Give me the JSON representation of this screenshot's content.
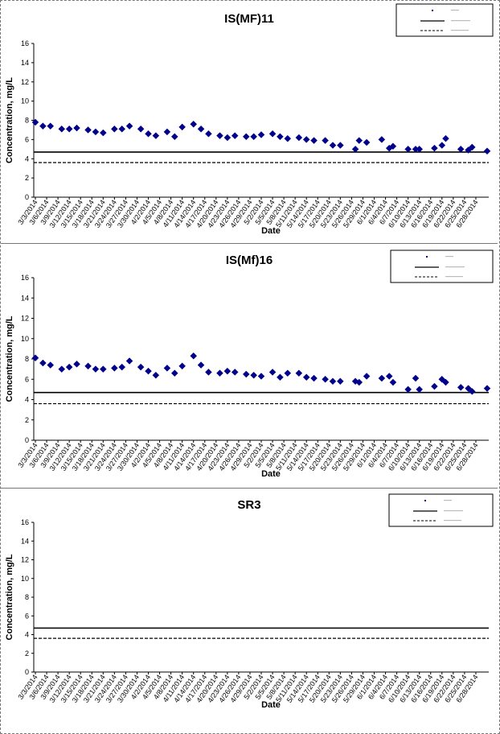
{
  "chart_data": [
    {
      "type": "scatter",
      "title": "IS(MF)11",
      "xlabel": "Date",
      "ylabel": "Concentration, mg/L",
      "ylim": [
        0,
        16
      ],
      "yticks": [
        0,
        2,
        4,
        6,
        8,
        10,
        12,
        14,
        16
      ],
      "x_tick_labels": [
        "3/3/2014",
        "3/6/2014",
        "3/9/2014",
        "3/12/2014",
        "3/15/2014",
        "3/18/2014",
        "3/21/2014",
        "3/24/2014",
        "3/27/2014",
        "3/30/2014",
        "4/2/2014",
        "4/5/2014",
        "4/8/2014",
        "4/11/2014",
        "4/14/2014",
        "4/17/2014",
        "4/20/2014",
        "4/23/2014",
        "4/26/2014",
        "4/29/2014",
        "5/2/2014",
        "5/5/2014",
        "5/8/2014",
        "5/11/2014",
        "5/14/2014",
        "5/17/2014",
        "5/20/2014",
        "5/23/2014",
        "5/26/2014",
        "5/29/2014",
        "6/1/2014",
        "6/4/2014",
        "6/7/2014",
        "6/10/2014",
        "6/13/2014",
        "6/16/2014",
        "6/19/2014",
        "6/22/2014",
        "6/25/2014",
        "6/28/2014"
      ],
      "grid": false,
      "legend_position": "top-right",
      "hlines": [
        {
          "y": 4.7,
          "style": "solid"
        },
        {
          "y": 3.6,
          "style": "dashed"
        }
      ],
      "series": [
        {
          "marker": "diamond",
          "color": "#00008B",
          "points": [
            {
              "x": "3/3/2014",
              "y": 7.8
            },
            {
              "x": "3/5/2014",
              "y": 7.4
            },
            {
              "x": "3/7/2014",
              "y": 7.4
            },
            {
              "x": "3/10/2014",
              "y": 7.1
            },
            {
              "x": "3/12/2014",
              "y": 7.1
            },
            {
              "x": "3/14/2014",
              "y": 7.2
            },
            {
              "x": "3/17/2014",
              "y": 7.0
            },
            {
              "x": "3/19/2014",
              "y": 6.8
            },
            {
              "x": "3/21/2014",
              "y": 6.7
            },
            {
              "x": "3/24/2014",
              "y": 7.1
            },
            {
              "x": "3/26/2014",
              "y": 7.1
            },
            {
              "x": "3/28/2014",
              "y": 7.4
            },
            {
              "x": "3/31/2014",
              "y": 7.1
            },
            {
              "x": "4/2/2014",
              "y": 6.6
            },
            {
              "x": "4/4/2014",
              "y": 6.4
            },
            {
              "x": "4/7/2014",
              "y": 6.8
            },
            {
              "x": "4/9/2014",
              "y": 6.3
            },
            {
              "x": "4/11/2014",
              "y": 7.3
            },
            {
              "x": "4/14/2014",
              "y": 7.6
            },
            {
              "x": "4/16/2014",
              "y": 7.1
            },
            {
              "x": "4/18/2014",
              "y": 6.6
            },
            {
              "x": "4/21/2014",
              "y": 6.4
            },
            {
              "x": "4/23/2014",
              "y": 6.2
            },
            {
              "x": "4/25/2014",
              "y": 6.4
            },
            {
              "x": "4/28/2014",
              "y": 6.3
            },
            {
              "x": "4/30/2014",
              "y": 6.3
            },
            {
              "x": "5/2/2014",
              "y": 6.5
            },
            {
              "x": "5/5/2014",
              "y": 6.6
            },
            {
              "x": "5/7/2014",
              "y": 6.3
            },
            {
              "x": "5/9/2014",
              "y": 6.1
            },
            {
              "x": "5/12/2014",
              "y": 6.2
            },
            {
              "x": "5/14/2014",
              "y": 6.0
            },
            {
              "x": "5/16/2014",
              "y": 5.9
            },
            {
              "x": "5/19/2014",
              "y": 5.9
            },
            {
              "x": "5/21/2014",
              "y": 5.4
            },
            {
              "x": "5/23/2014",
              "y": 5.4
            },
            {
              "x": "5/27/2014",
              "y": 5.0
            },
            {
              "x": "5/28/2014",
              "y": 5.9
            },
            {
              "x": "5/30/2014",
              "y": 5.7
            },
            {
              "x": "6/3/2014",
              "y": 6.0
            },
            {
              "x": "6/5/2014",
              "y": 5.1
            },
            {
              "x": "6/6/2014",
              "y": 5.3
            },
            {
              "x": "6/10/2014",
              "y": 5.0
            },
            {
              "x": "6/12/2014",
              "y": 5.0
            },
            {
              "x": "6/13/2014",
              "y": 5.0
            },
            {
              "x": "6/17/2014",
              "y": 5.1
            },
            {
              "x": "6/19/2014",
              "y": 5.4
            },
            {
              "x": "6/20/2014",
              "y": 6.1
            },
            {
              "x": "6/24/2014",
              "y": 5.0
            },
            {
              "x": "6/26/2014",
              "y": 4.9
            },
            {
              "x": "6/27/2014",
              "y": 5.2
            },
            {
              "x": "7/1/2014",
              "y": 4.8
            }
          ]
        }
      ]
    },
    {
      "type": "scatter",
      "title": "IS(Mf)16",
      "xlabel": "Date",
      "ylabel": "Concentration, mg/L",
      "ylim": [
        0,
        16
      ],
      "yticks": [
        0,
        2,
        4,
        6,
        8,
        10,
        12,
        14,
        16
      ],
      "x_tick_labels": [
        "3/3/2014",
        "3/6/2014",
        "3/9/2014",
        "3/12/2014",
        "3/15/2014",
        "3/18/2014",
        "3/21/2014",
        "3/24/2014",
        "3/27/2014",
        "3/30/2014",
        "4/2/2014",
        "4/5/2014",
        "4/8/2014",
        "4/11/2014",
        "4/14/2014",
        "4/17/2014",
        "4/20/2014",
        "4/23/2014",
        "4/26/2014",
        "4/29/2014",
        "5/2/2014",
        "5/5/2014",
        "5/8/2014",
        "5/11/2014",
        "5/14/2014",
        "5/17/2014",
        "5/20/2014",
        "5/23/2014",
        "5/26/2014",
        "5/29/2014",
        "6/1/2014",
        "6/4/2014",
        "6/7/2014",
        "6/10/2014",
        "6/13/2014",
        "6/16/2014",
        "6/19/2014",
        "6/22/2014",
        "6/25/2014",
        "6/28/2014"
      ],
      "grid": false,
      "legend_position": "top-right",
      "hlines": [
        {
          "y": 4.7,
          "style": "solid"
        },
        {
          "y": 3.6,
          "style": "dashed"
        }
      ],
      "series": [
        {
          "marker": "diamond",
          "color": "#00008B",
          "points": [
            {
              "x": "3/3/2014",
              "y": 8.1
            },
            {
              "x": "3/5/2014",
              "y": 7.6
            },
            {
              "x": "3/7/2014",
              "y": 7.4
            },
            {
              "x": "3/10/2014",
              "y": 7.0
            },
            {
              "x": "3/12/2014",
              "y": 7.2
            },
            {
              "x": "3/14/2014",
              "y": 7.5
            },
            {
              "x": "3/17/2014",
              "y": 7.3
            },
            {
              "x": "3/19/2014",
              "y": 7.0
            },
            {
              "x": "3/21/2014",
              "y": 7.0
            },
            {
              "x": "3/24/2014",
              "y": 7.1
            },
            {
              "x": "3/26/2014",
              "y": 7.2
            },
            {
              "x": "3/28/2014",
              "y": 7.8
            },
            {
              "x": "3/31/2014",
              "y": 7.2
            },
            {
              "x": "4/2/2014",
              "y": 6.8
            },
            {
              "x": "4/4/2014",
              "y": 6.4
            },
            {
              "x": "4/7/2014",
              "y": 7.1
            },
            {
              "x": "4/9/2014",
              "y": 6.6
            },
            {
              "x": "4/11/2014",
              "y": 7.3
            },
            {
              "x": "4/14/2014",
              "y": 8.3
            },
            {
              "x": "4/16/2014",
              "y": 7.4
            },
            {
              "x": "4/18/2014",
              "y": 6.7
            },
            {
              "x": "4/21/2014",
              "y": 6.6
            },
            {
              "x": "4/23/2014",
              "y": 6.8
            },
            {
              "x": "4/25/2014",
              "y": 6.7
            },
            {
              "x": "4/28/2014",
              "y": 6.5
            },
            {
              "x": "4/30/2014",
              "y": 6.4
            },
            {
              "x": "5/2/2014",
              "y": 6.3
            },
            {
              "x": "5/5/2014",
              "y": 6.7
            },
            {
              "x": "5/7/2014",
              "y": 6.2
            },
            {
              "x": "5/9/2014",
              "y": 6.6
            },
            {
              "x": "5/12/2014",
              "y": 6.6
            },
            {
              "x": "5/14/2014",
              "y": 6.2
            },
            {
              "x": "5/16/2014",
              "y": 6.1
            },
            {
              "x": "5/19/2014",
              "y": 6.0
            },
            {
              "x": "5/21/2014",
              "y": 5.8
            },
            {
              "x": "5/23/2014",
              "y": 5.8
            },
            {
              "x": "5/27/2014",
              "y": 5.8
            },
            {
              "x": "5/28/2014",
              "y": 5.7
            },
            {
              "x": "5/30/2014",
              "y": 6.3
            },
            {
              "x": "6/3/2014",
              "y": 6.1
            },
            {
              "x": "6/5/2014",
              "y": 6.3
            },
            {
              "x": "6/6/2014",
              "y": 5.7
            },
            {
              "x": "6/10/2014",
              "y": 5.0
            },
            {
              "x": "6/12/2014",
              "y": 6.1
            },
            {
              "x": "6/13/2014",
              "y": 5.0
            },
            {
              "x": "6/17/2014",
              "y": 5.3
            },
            {
              "x": "6/19/2014",
              "y": 6.0
            },
            {
              "x": "6/20/2014",
              "y": 5.7
            },
            {
              "x": "6/24/2014",
              "y": 5.2
            },
            {
              "x": "6/26/2014",
              "y": 5.1
            },
            {
              "x": "6/27/2014",
              "y": 4.8
            },
            {
              "x": "7/1/2014",
              "y": 5.1
            }
          ]
        }
      ]
    },
    {
      "type": "scatter",
      "title": "SR3",
      "xlabel": "Date",
      "ylabel": "Concentration, mg/L",
      "ylim": [
        0,
        16
      ],
      "yticks": [
        0,
        2,
        4,
        6,
        8,
        10,
        12,
        14,
        16
      ],
      "x_tick_labels": [
        "3/3/2014",
        "3/6/2014",
        "3/9/2014",
        "3/12/2014",
        "3/15/2014",
        "3/18/2014",
        "3/21/2014",
        "3/24/2014",
        "3/27/2014",
        "3/30/2014",
        "4/2/2014",
        "4/5/2014",
        "4/8/2014",
        "4/11/2014",
        "4/14/2014",
        "4/17/2014",
        "4/20/2014",
        "4/23/2014",
        "4/26/2014",
        "4/29/2014",
        "5/2/2014",
        "5/5/2014",
        "5/8/2014",
        "5/11/2014",
        "5/14/2014",
        "5/17/2014",
        "5/20/2014",
        "5/23/2014",
        "5/26/2014",
        "5/29/2014",
        "6/1/2014",
        "6/4/2014",
        "6/7/2014",
        "6/10/2014",
        "6/13/2014",
        "6/16/2014",
        "6/19/2014",
        "6/22/2014",
        "6/25/2014",
        "6/28/2014"
      ],
      "grid": false,
      "legend_position": "top-right",
      "hlines": [
        {
          "y": 4.7,
          "style": "solid"
        },
        {
          "y": 3.6,
          "style": "dashed"
        }
      ],
      "series": [
        {
          "marker": "diamond",
          "color": "#00008B",
          "points": []
        }
      ]
    }
  ]
}
